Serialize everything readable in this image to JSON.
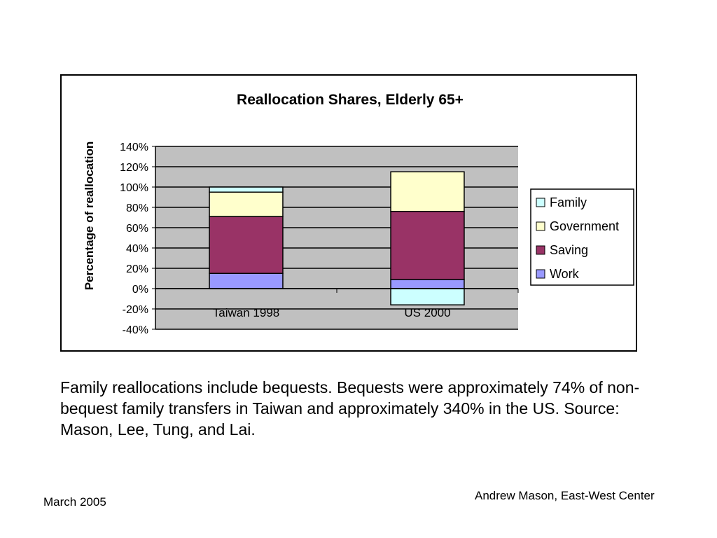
{
  "chart_data": {
    "type": "bar",
    "stacked": true,
    "title": "Reallocation Shares, Elderly 65+",
    "ylabel": "Percentage of reallocation",
    "xlabel": "",
    "categories": [
      "Taiwan 1998",
      "US 2000"
    ],
    "ylim": [
      -40,
      140
    ],
    "yticks": [
      "-40%",
      "-20%",
      "0%",
      "20%",
      "40%",
      "60%",
      "80%",
      "100%",
      "120%",
      "140%"
    ],
    "grid": true,
    "legend_position": "right",
    "series": [
      {
        "name": "Work",
        "color": "#9999ff",
        "values": [
          15,
          9
        ]
      },
      {
        "name": "Saving",
        "color": "#993366",
        "values": [
          56,
          67
        ]
      },
      {
        "name": "Government",
        "color": "#ffffcc",
        "values": [
          24,
          39
        ]
      },
      {
        "name": "Family",
        "color": "#ccffff",
        "values": [
          5,
          -16
        ]
      }
    ],
    "legend_order": [
      "Family",
      "Government",
      "Saving",
      "Work"
    ]
  },
  "caption": "Family reallocations include bequests.  Bequests were approximately 74% of non-bequest family transfers in Taiwan and approximately 340% in the US.  Source:  Mason, Lee, Tung, and Lai.",
  "footer": {
    "date": "March 2005",
    "author": "Andrew Mason, East-West Center"
  }
}
